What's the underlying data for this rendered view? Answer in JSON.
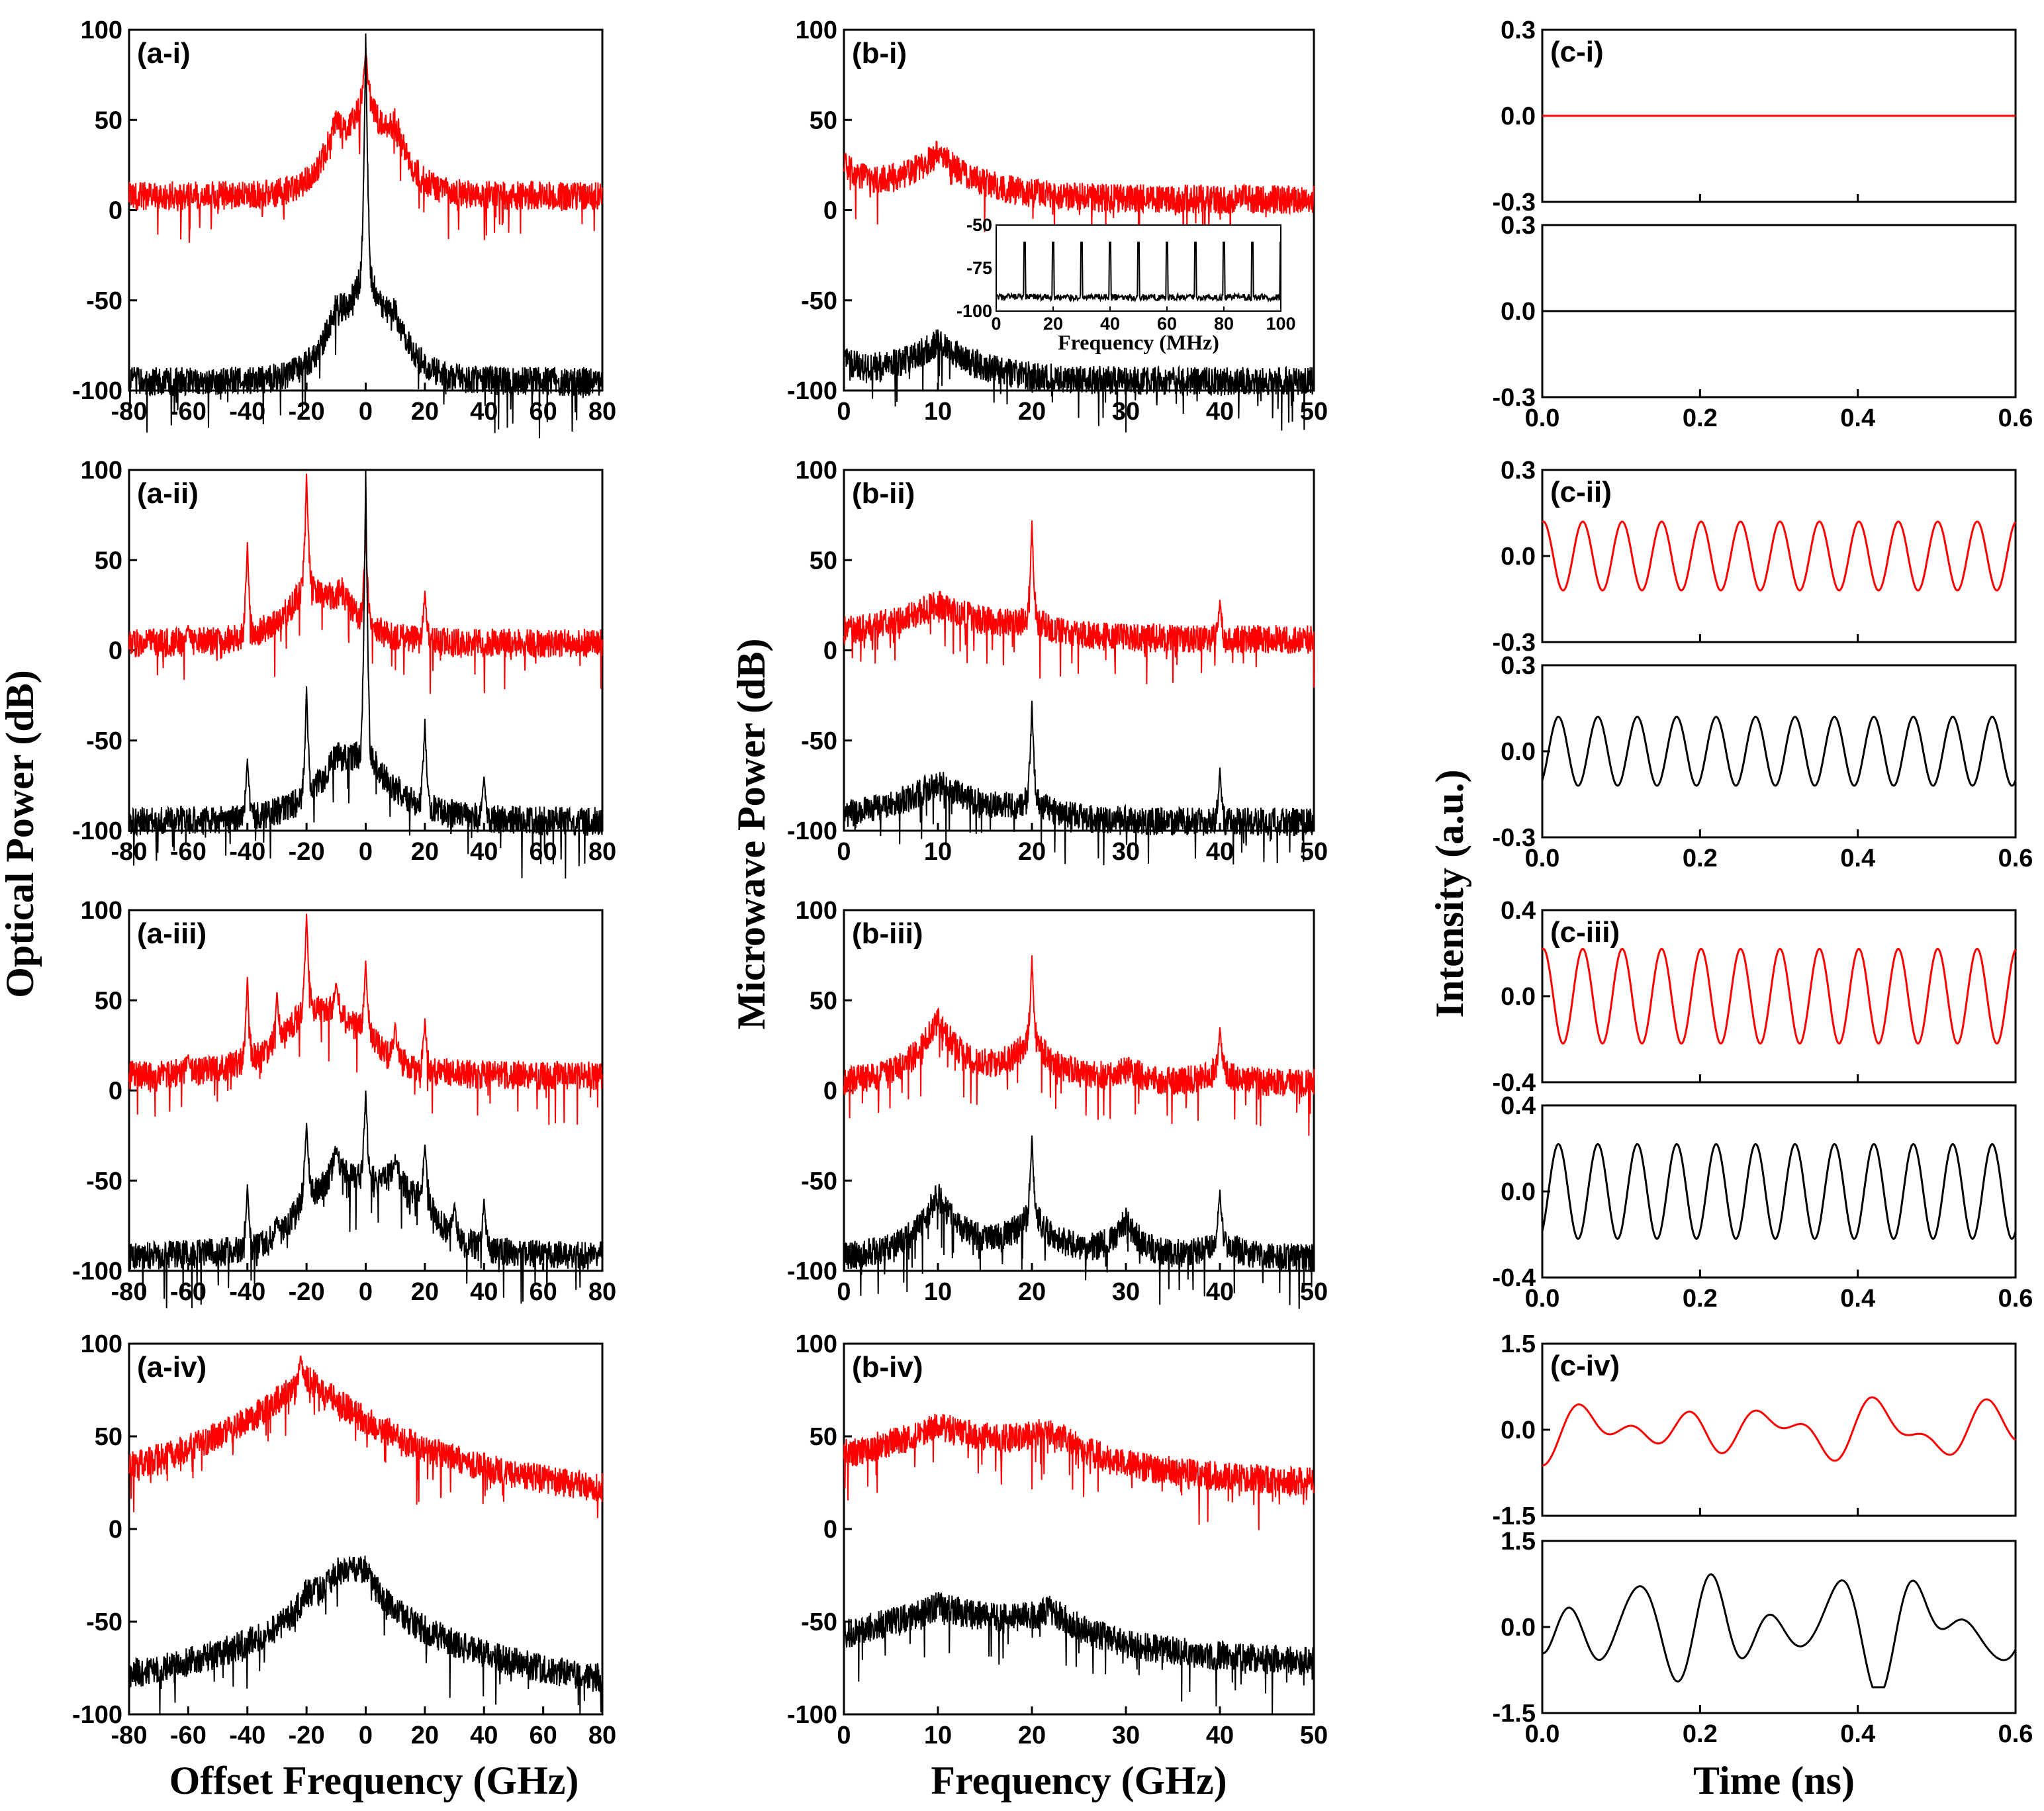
{
  "colors": {
    "red": "#ff0000",
    "black": "#000000"
  },
  "axis_labels": {
    "a_y": "Optical Power (dB)",
    "a_x": "Offset Frequency (GHz)",
    "b_y": "Microwave Power (dB)",
    "b_x": "Frequency (GHz)",
    "c_y": "Intensity (a.u.)",
    "c_x": "Time (ns)"
  },
  "panel_labels": {
    "a": [
      "(a-i)",
      "(a-ii)",
      "(a-iii)",
      "(a-iv)"
    ],
    "b": [
      "(b-i)",
      "(b-ii)",
      "(b-iii)",
      "(b-iv)"
    ],
    "c": [
      "(c-i)",
      "(c-ii)",
      "(c-iii)",
      "(c-iv)"
    ]
  },
  "inset": {
    "xlabel": "Frequency (MHz)"
  },
  "chart_data": [
    {
      "type": "line",
      "id": "optical-spectra",
      "xlabel": "Offset Frequency (GHz)",
      "ylabel": "Optical Power (dB)",
      "xlim": [
        -80,
        80
      ],
      "ylim": [
        -100,
        100
      ],
      "xticks": [
        -80,
        -60,
        -40,
        -20,
        0,
        20,
        40,
        60,
        80
      ],
      "yticks": [
        -100,
        -50,
        0,
        50,
        100
      ],
      "panels": [
        {
          "label": "(a-i)",
          "red": {
            "baseline": 8,
            "bumps": [
              [
                0,
                52,
                7
              ],
              [
                -10,
                30,
                6
              ],
              [
                10,
                28,
                6
              ]
            ],
            "peaks": [
              [
                0,
                88
              ]
            ]
          },
          "black": {
            "baseline": -95,
            "bumps": [
              [
                0,
                60,
                8
              ],
              [
                -10,
                25,
                6
              ],
              [
                10,
                22,
                6
              ]
            ],
            "peaks": [
              [
                0,
                98
              ]
            ]
          }
        },
        {
          "label": "(a-ii)",
          "red": {
            "baseline": 4,
            "bumps": [
              [
                -20,
                30,
                10
              ],
              [
                -8,
                20,
                8
              ]
            ],
            "peaks": [
              [
                -20,
                98
              ],
              [
                -40,
                60
              ],
              [
                0,
                70
              ],
              [
                20,
                33
              ],
              [
                -60,
                14
              ]
            ]
          },
          "black": {
            "baseline": -95,
            "bumps": [
              [
                0,
                35,
                14
              ],
              [
                -10,
                20,
                8
              ]
            ],
            "peaks": [
              [
                0,
                100
              ],
              [
                -20,
                -20
              ],
              [
                20,
                -38
              ],
              [
                -40,
                -60
              ],
              [
                40,
                -70
              ]
            ]
          }
        },
        {
          "label": "(a-iii)",
          "red": {
            "baseline": 8,
            "bumps": [
              [
                -20,
                35,
                14
              ],
              [
                -10,
                18,
                8
              ],
              [
                0,
                14,
                8
              ]
            ],
            "peaks": [
              [
                -20,
                98
              ],
              [
                -40,
                63
              ],
              [
                0,
                72
              ],
              [
                20,
                40
              ],
              [
                10,
                38
              ],
              [
                -10,
                60
              ],
              [
                -30,
                56
              ],
              [
                -60,
                20
              ]
            ]
          },
          "black": {
            "baseline": -92,
            "bumps": [
              [
                0,
                35,
                18
              ],
              [
                -10,
                30,
                6
              ],
              [
                10,
                25,
                6
              ],
              [
                -20,
                22,
                6
              ],
              [
                20,
                20,
                6
              ]
            ],
            "peaks": [
              [
                0,
                0
              ],
              [
                -20,
                -18
              ],
              [
                20,
                -30
              ],
              [
                10,
                -40
              ],
              [
                -10,
                -35
              ],
              [
                -40,
                -52
              ],
              [
                40,
                -60
              ],
              [
                30,
                -62
              ],
              [
                -30,
                -70
              ]
            ]
          }
        },
        {
          "label": "(a-iv)",
          "red": {
            "baseline": 14,
            "bumps": [
              [
                -20,
                68,
                48
              ]
            ],
            "peaks": [
              [
                -22,
                94
              ]
            ]
          },
          "black": {
            "baseline": -90,
            "bumps": [
              [
                -5,
                62,
                45
              ],
              [
                -20,
                10,
                5
              ],
              [
                -10,
                9,
                5
              ],
              [
                0,
                12,
                5
              ]
            ],
            "peaks": []
          }
        }
      ]
    },
    {
      "type": "line",
      "id": "microwave-spectra",
      "xlabel": "Frequency (GHz)",
      "ylabel": "Microwave Power (dB)",
      "xlim": [
        0,
        50
      ],
      "ylim": [
        -100,
        100
      ],
      "xticks": [
        0,
        10,
        20,
        30,
        40,
        50
      ],
      "yticks": [
        -100,
        -50,
        0,
        50,
        100
      ],
      "panels": [
        {
          "label": "(b-i)",
          "red": {
            "baseline": 6,
            "bumps": [
              [
                10,
                25,
                5
              ],
              [
                0,
                15,
                3
              ]
            ],
            "peaks": []
          },
          "black": {
            "baseline": -95,
            "bumps": [
              [
                10,
                22,
                5
              ],
              [
                0,
                8,
                3
              ]
            ],
            "peaks": []
          }
        },
        {
          "label": "(b-ii)",
          "red": {
            "baseline": 6,
            "bumps": [
              [
                10,
                20,
                7
              ],
              [
                20,
                8,
                2
              ]
            ],
            "peaks": [
              [
                20,
                72
              ],
              [
                40,
                28
              ]
            ]
          },
          "black": {
            "baseline": -95,
            "bumps": [
              [
                10,
                22,
                6
              ],
              [
                20,
                10,
                2
              ]
            ],
            "peaks": [
              [
                20,
                -28
              ],
              [
                40,
                -65
              ]
            ]
          }
        },
        {
          "label": "(b-iii)",
          "red": {
            "baseline": 4,
            "bumps": [
              [
                10,
                35,
                3
              ],
              [
                20,
                25,
                3
              ],
              [
                30,
                8,
                2
              ],
              [
                40,
                8,
                2
              ]
            ],
            "peaks": [
              [
                20,
                75
              ],
              [
                40,
                35
              ]
            ]
          },
          "black": {
            "baseline": -93,
            "bumps": [
              [
                10,
                35,
                3
              ],
              [
                20,
                25,
                3
              ],
              [
                30,
                20,
                2
              ],
              [
                40,
                12,
                2
              ]
            ],
            "peaks": [
              [
                20,
                -25
              ],
              [
                40,
                -55
              ]
            ]
          }
        },
        {
          "label": "(b-iv)",
          "red": {
            "baseline": 22,
            "bumps": [
              [
                10,
                32,
                18
              ],
              [
                22,
                15,
                5
              ]
            ],
            "peaks": []
          },
          "black": {
            "baseline": -75,
            "bumps": [
              [
                10,
                32,
                18
              ],
              [
                22,
                15,
                5
              ]
            ],
            "peaks": []
          }
        }
      ],
      "inset": {
        "panel": "(b-i)",
        "xlabel": "Frequency (MHz)",
        "xlim": [
          0,
          100
        ],
        "ylim": [
          -100,
          -50
        ],
        "xticks": [
          0,
          20,
          40,
          60,
          80,
          100
        ],
        "yticks": [
          -100,
          -75,
          -50
        ],
        "baseline": -92,
        "peak_positions": [
          10,
          20,
          30,
          40,
          50,
          60,
          70,
          80,
          90,
          100
        ],
        "peak_level": -60
      }
    },
    {
      "type": "line",
      "id": "time-traces",
      "xlabel": "Time (ns)",
      "ylabel": "Intensity (a.u.)",
      "xlim": [
        0,
        0.6
      ],
      "xticks": [
        0.0,
        0.2,
        0.4,
        0.6
      ],
      "panels": [
        {
          "label": "(c-i)",
          "ylim": [
            -0.3,
            0.3
          ],
          "yticks": [
            -0.3,
            0.0,
            0.3
          ],
          "mode": "flat",
          "amplitude": 0,
          "period": 0.05
        },
        {
          "label": "(c-ii)",
          "ylim": [
            -0.3,
            0.3
          ],
          "yticks": [
            -0.3,
            0.0,
            0.3
          ],
          "mode": "periodic",
          "amplitude": 0.12,
          "period": 0.05
        },
        {
          "label": "(c-iii)",
          "ylim": [
            -0.4,
            0.4
          ],
          "yticks": [
            -0.4,
            0.0,
            0.4
          ],
          "mode": "periodic",
          "amplitude": 0.22,
          "period": 0.05
        },
        {
          "label": "(c-iv)",
          "ylim": [
            -1.5,
            1.5
          ],
          "yticks": [
            -1.5,
            0.0,
            1.5
          ],
          "mode": "chaotic",
          "amplitude": 0.9,
          "period": 0.08
        }
      ]
    }
  ]
}
